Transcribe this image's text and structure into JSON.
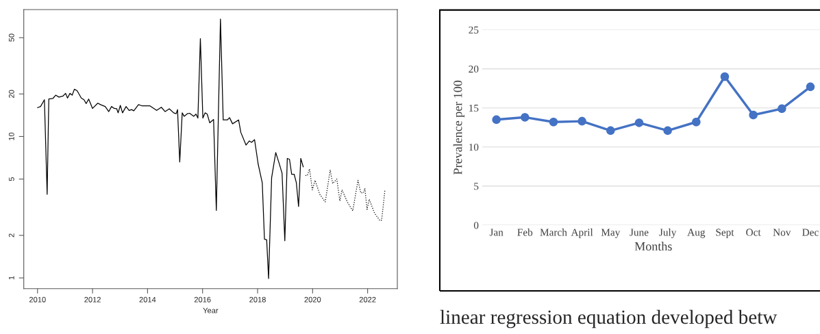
{
  "chart_data": [
    {
      "type": "line",
      "xlabel": "Year",
      "log": "y",
      "xlim": [
        2009.5,
        2023.08
      ],
      "ylim": [
        0.84,
        79
      ],
      "xticks": [
        2010,
        2012,
        2014,
        2016,
        2018,
        2020,
        2022
      ],
      "yticks": [
        1,
        2,
        5,
        10,
        20,
        50
      ],
      "grid": false,
      "legend": false,
      "series": [
        {
          "color": "#000000",
          "line_style": "solid",
          "x": [
            2010.0,
            2010.11,
            2010.25,
            2010.35,
            2010.41,
            2010.56,
            2010.66,
            2010.78,
            2010.92,
            2011.02,
            2011.09,
            2011.18,
            2011.26,
            2011.34,
            2011.44,
            2011.59,
            2011.69,
            2011.77,
            2011.86,
            2012.0,
            2012.19,
            2012.29,
            2012.46,
            2012.59,
            2012.69,
            2012.79,
            2012.88,
            2012.93,
            2013.01,
            2013.09,
            2013.22,
            2013.33,
            2013.42,
            2013.5,
            2013.67,
            2013.79,
            2014.08,
            2014.33,
            2014.5,
            2014.64,
            2014.79,
            2014.95,
            2015.04,
            2015.09,
            2015.17,
            2015.26,
            2015.33,
            2015.45,
            2015.53,
            2015.68,
            2015.76,
            2015.83,
            2015.92,
            2016.01,
            2016.09,
            2016.17,
            2016.26,
            2016.4,
            2016.5,
            2016.65,
            2016.75,
            2016.9,
            2016.98,
            2017.09,
            2017.31,
            2017.39,
            2017.58,
            2017.7,
            2017.78,
            2017.89,
            2018.02,
            2018.17,
            2018.25,
            2018.33,
            2018.4,
            2018.51,
            2018.66,
            2018.78,
            2018.89,
            2018.99,
            2019.08,
            2019.16,
            2019.24,
            2019.33,
            2019.41,
            2019.49,
            2019.57,
            2019.66
          ],
          "values": [
            16.0,
            16.3,
            18.2,
            3.9,
            18.4,
            18.6,
            19.6,
            19.0,
            19.3,
            20.2,
            18.7,
            20.2,
            19.6,
            21.6,
            21.1,
            18.7,
            18.2,
            17.1,
            18.4,
            15.8,
            17.2,
            16.8,
            16.3,
            15.0,
            16.3,
            15.8,
            15.7,
            14.7,
            16.6,
            14.7,
            16.3,
            15.3,
            15.5,
            15.2,
            16.8,
            16.5,
            16.5,
            15.3,
            16.1,
            15.0,
            15.7,
            14.7,
            14.5,
            15.5,
            6.6,
            14.7,
            13.9,
            14.5,
            14.6,
            13.9,
            14.4,
            13.5,
            49.3,
            13.5,
            14.7,
            14.4,
            12.5,
            13.2,
            3.0,
            67.7,
            13.1,
            13.1,
            13.6,
            12.3,
            13.1,
            10.7,
            8.7,
            9.3,
            9.1,
            9.5,
            6.4,
            4.7,
            1.88,
            1.86,
            0.99,
            5.1,
            7.7,
            6.5,
            5.5,
            1.83,
            7.0,
            6.9,
            5.4,
            5.4,
            4.7,
            3.2,
            7.0,
            6.1
          ]
        },
        {
          "color": "#000000",
          "line_style": "dotted",
          "x": [
            2019.74,
            2019.81,
            2019.89,
            2019.99,
            2020.09,
            2020.26,
            2020.46,
            2020.64,
            2020.73,
            2020.88,
            2020.99,
            2021.07,
            2021.26,
            2021.46,
            2021.65,
            2021.75,
            2021.85,
            2021.9,
            2021.98,
            2022.06,
            2022.25,
            2022.45,
            2022.51,
            2022.63
          ],
          "values": [
            5.3,
            5.3,
            5.9,
            4.2,
            4.9,
            3.9,
            3.45,
            5.8,
            4.65,
            5.0,
            3.5,
            4.2,
            3.45,
            2.98,
            4.9,
            4.0,
            4.0,
            4.3,
            3.05,
            3.6,
            2.87,
            2.54,
            2.56,
            4.2
          ]
        }
      ]
    },
    {
      "type": "line",
      "xlabel": "Months",
      "ylabel": "Prevalence per 100",
      "categories": [
        "Jan",
        "Feb",
        "March",
        "April",
        "May",
        "June",
        "July",
        "Aug",
        "Sept",
        "Oct",
        "Nov",
        "Dec"
      ],
      "ylim": [
        0,
        25
      ],
      "yticks": [
        0,
        5,
        10,
        15,
        20,
        25
      ],
      "grid": "y",
      "marker": "circle",
      "legend": false,
      "series": [
        {
          "color": "#4472c4",
          "values": [
            13.5,
            13.8,
            13.2,
            13.3,
            12.1,
            13.1,
            12.1,
            13.2,
            19.0,
            14.1,
            14.9,
            17.7
          ]
        }
      ],
      "annotations": [
        "linear regression equation developed betw"
      ]
    }
  ]
}
